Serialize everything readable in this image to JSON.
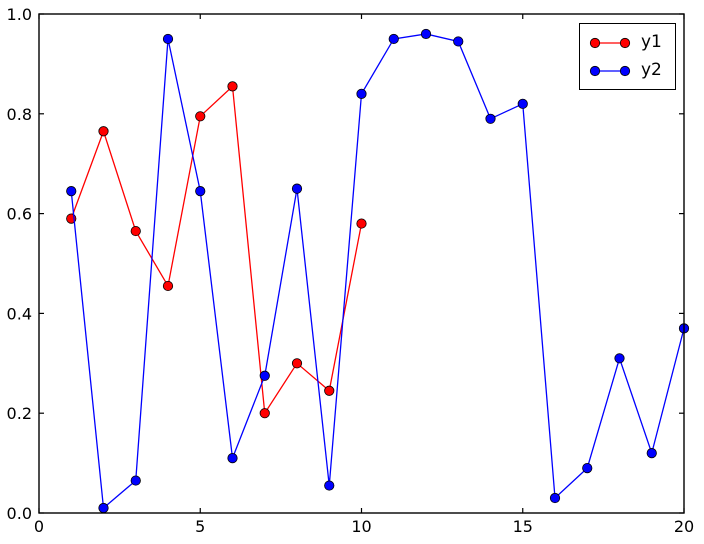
{
  "figure": {
    "background": "#ffffff",
    "axis_color": "#000000"
  },
  "chart_data": {
    "type": "line",
    "title": "",
    "xlabel": "",
    "ylabel": "",
    "xlim": [
      0,
      20
    ],
    "ylim": [
      0.0,
      1.0
    ],
    "grid": false,
    "xticks": {
      "values": [
        0,
        5,
        10,
        15,
        20
      ],
      "labels": [
        "0",
        "5",
        "10",
        "15",
        "20"
      ]
    },
    "yticks": {
      "values": [
        0.0,
        0.2,
        0.4,
        0.6,
        0.8,
        1.0
      ],
      "labels": [
        "0.0",
        "0.2",
        "0.4",
        "0.6",
        "0.8",
        "1.0"
      ]
    },
    "legend": {
      "position": "upper right"
    },
    "series": [
      {
        "name": "y1",
        "color": "#ff0000",
        "marker": "circle",
        "marker_edge_color": "#000000",
        "x": [
          1,
          2,
          3,
          4,
          5,
          6,
          7,
          8,
          9,
          10
        ],
        "y": [
          0.59,
          0.765,
          0.565,
          0.455,
          0.795,
          0.855,
          0.2,
          0.3,
          0.245,
          0.58
        ]
      },
      {
        "name": "y2",
        "color": "#0000ff",
        "marker": "circle",
        "marker_edge_color": "#000000",
        "x": [
          1,
          2,
          3,
          4,
          5,
          6,
          7,
          8,
          9,
          10,
          11,
          12,
          13,
          14,
          15,
          16,
          17,
          18,
          19,
          20
        ],
        "y": [
          0.645,
          0.01,
          0.065,
          0.95,
          0.645,
          0.11,
          0.275,
          0.65,
          0.055,
          0.84,
          0.95,
          0.96,
          0.945,
          0.79,
          0.82,
          0.03,
          0.09,
          0.31,
          0.12,
          0.37
        ]
      }
    ]
  }
}
